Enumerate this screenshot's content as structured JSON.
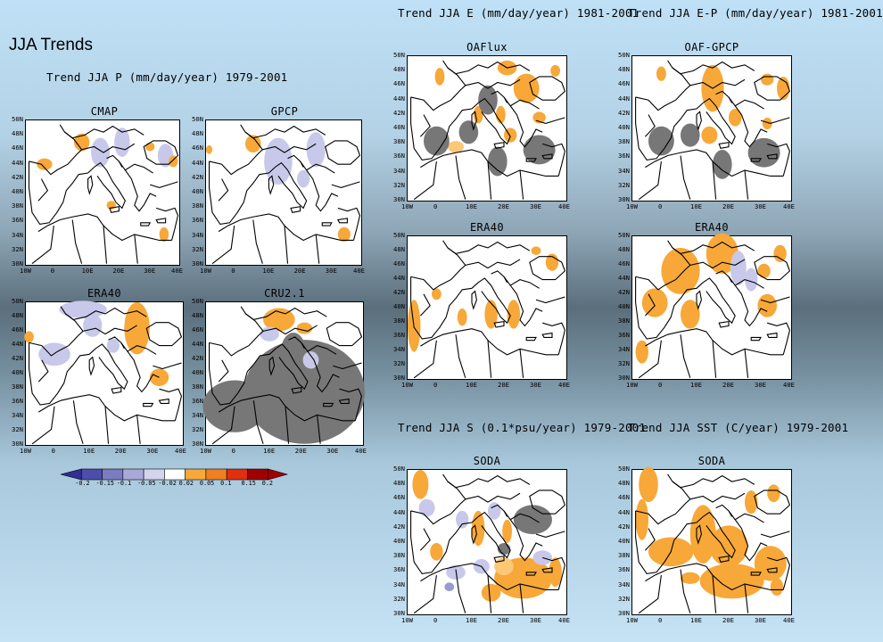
{
  "slide_title": "JJA Trends",
  "headers": {
    "precip": "Trend JJA P (mm/day/year) 1979-2001",
    "evap": "Trend JJA E (mm/day/year) 1981-2001",
    "evap_minus_p": "Trend JJA E-P (mm/day/year) 1981-2001",
    "salinity": "Trend JJA S (0.1*psu/year) 1979-2001",
    "sst": "Trend JJA SST (C/year) 1979-2001"
  },
  "panels": [
    {
      "id": "cmap",
      "title": "CMAP"
    },
    {
      "id": "gpcp",
      "title": "GPCP"
    },
    {
      "id": "era40-p",
      "title": "ERA40"
    },
    {
      "id": "cru",
      "title": "CRU2.1"
    },
    {
      "id": "oaflux",
      "title": "OAFlux"
    },
    {
      "id": "oaf-gpcp",
      "title": "OAF-GPCP"
    },
    {
      "id": "era40-e",
      "title": "ERA40"
    },
    {
      "id": "era40-ep",
      "title": "ERA40"
    },
    {
      "id": "soda-s",
      "title": "SODA"
    },
    {
      "id": "soda-sst",
      "title": "SODA"
    }
  ],
  "axes": {
    "y_ticks": [
      "50N",
      "48N",
      "46N",
      "44N",
      "42N",
      "40N",
      "38N",
      "36N",
      "34N",
      "32N",
      "30N"
    ],
    "x_ticks": [
      "10W",
      "0",
      "10E",
      "20E",
      "30E",
      "40E"
    ],
    "x_ticks_cut": [
      "10W",
      "0",
      "10E",
      "20E",
      "30E",
      "40E"
    ]
  },
  "colorbar": {
    "labels": [
      "-0.2",
      "-0.15",
      "-0.1",
      "-0.05",
      "-0.02",
      "0.02",
      "0.05",
      "0.1",
      "0.15",
      "0.2"
    ],
    "colors": [
      "#2f2f8f",
      "#4d4dab",
      "#7b7bc2",
      "#a9a9d9",
      "#d4d4ef",
      "#ffffff",
      "#f7a838",
      "#f08020",
      "#e03010",
      "#a00000"
    ]
  },
  "colors": {
    "orange": "#f7a838",
    "light_orange": "#fbc878",
    "lavender": "#c8c8ea",
    "blue": "#9a9ad2",
    "gray_mask": "#777777",
    "mask_gray_light": "#bcbcbc"
  }
}
